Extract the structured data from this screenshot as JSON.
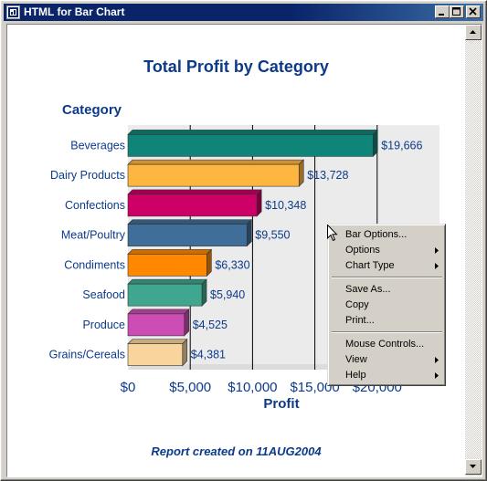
{
  "window": {
    "title": "HTML for Bar Chart"
  },
  "chart_data": {
    "type": "bar",
    "orientation": "horizontal",
    "title": "Total Profit by Category",
    "ylabel": "Category",
    "xlabel": "Profit",
    "categories": [
      "Beverages",
      "Dairy Products",
      "Confections",
      "Meat/Poultry",
      "Condiments",
      "Seafood",
      "Produce",
      "Grains/Cereals"
    ],
    "values": [
      19666,
      13728,
      10348,
      9550,
      6330,
      5940,
      4525,
      4381
    ],
    "value_labels": [
      "$19,666",
      "$13,728",
      "$10,348",
      "$9,550",
      "$6,330",
      "$5,940",
      "$4,525",
      "$4,381"
    ],
    "colors": [
      "#0f8478",
      "#ffb640",
      "#cc0066",
      "#3f6e99",
      "#ff8800",
      "#3fa68f",
      "#cc4db3",
      "#f9d49d"
    ],
    "xlim": [
      0,
      25000
    ],
    "xticks": [
      0,
      5000,
      10000,
      15000,
      20000
    ],
    "xtick_labels": [
      "$0",
      "$5,000",
      "$10,000",
      "$15,000",
      "$20,000"
    ],
    "grid": true,
    "legend": "none"
  },
  "footer": "Report created on 11AUG2004",
  "context_menu": {
    "items": [
      {
        "label": "Bar Options...",
        "submenu": false
      },
      {
        "label": "Options",
        "submenu": true
      },
      {
        "label": "Chart Type",
        "submenu": true
      },
      {
        "label": "Save As...",
        "submenu": false
      },
      {
        "label": "Copy",
        "submenu": false
      },
      {
        "label": "Print...",
        "submenu": false
      },
      {
        "label": "Mouse Controls...",
        "submenu": false
      },
      {
        "label": "View",
        "submenu": true
      },
      {
        "label": "Help",
        "submenu": true
      }
    ]
  },
  "colors": {
    "titlebar": "#0a246a",
    "text_accent": "#0c3a8a",
    "plot_background": "#ebebeb"
  }
}
